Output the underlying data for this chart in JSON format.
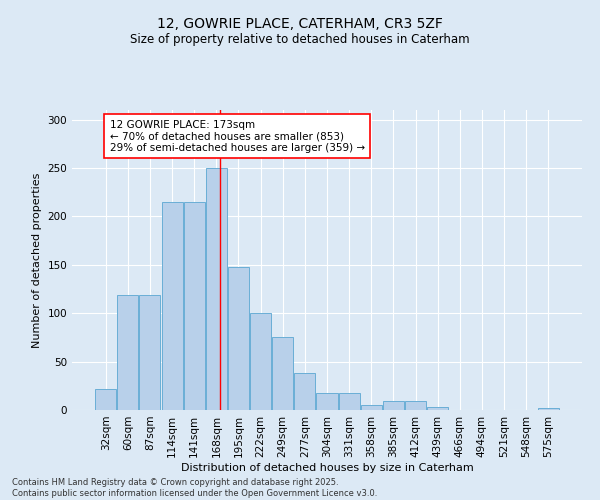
{
  "title": "12, GOWRIE PLACE, CATERHAM, CR3 5ZF",
  "subtitle": "Size of property relative to detached houses in Caterham",
  "xlabel": "Distribution of detached houses by size in Caterham",
  "ylabel": "Number of detached properties",
  "categories": [
    "32sqm",
    "60sqm",
    "87sqm",
    "114sqm",
    "141sqm",
    "168sqm",
    "195sqm",
    "222sqm",
    "249sqm",
    "277sqm",
    "304sqm",
    "331sqm",
    "358sqm",
    "385sqm",
    "412sqm",
    "439sqm",
    "466sqm",
    "494sqm",
    "521sqm",
    "548sqm",
    "575sqm"
  ],
  "values": [
    22,
    119,
    119,
    215,
    215,
    250,
    148,
    100,
    75,
    38,
    18,
    18,
    5,
    9,
    9,
    3,
    0,
    0,
    0,
    0,
    2
  ],
  "bar_color": "#b8d0ea",
  "bar_edge_color": "#6aaed6",
  "background_color": "#dce9f5",
  "vline_color": "red",
  "annotation_text": "12 GOWRIE PLACE: 173sqm\n← 70% of detached houses are smaller (853)\n29% of semi-detached houses are larger (359) →",
  "annotation_box_color": "white",
  "annotation_box_edge_color": "red",
  "footer": "Contains HM Land Registry data © Crown copyright and database right 2025.\nContains public sector information licensed under the Open Government Licence v3.0.",
  "ylim": [
    0,
    310
  ],
  "yticks": [
    0,
    50,
    100,
    150,
    200,
    250,
    300
  ],
  "title_fontsize": 10,
  "subtitle_fontsize": 8.5,
  "xlabel_fontsize": 8,
  "ylabel_fontsize": 8,
  "tick_fontsize": 7.5,
  "footer_fontsize": 6,
  "annotation_fontsize": 7.5
}
